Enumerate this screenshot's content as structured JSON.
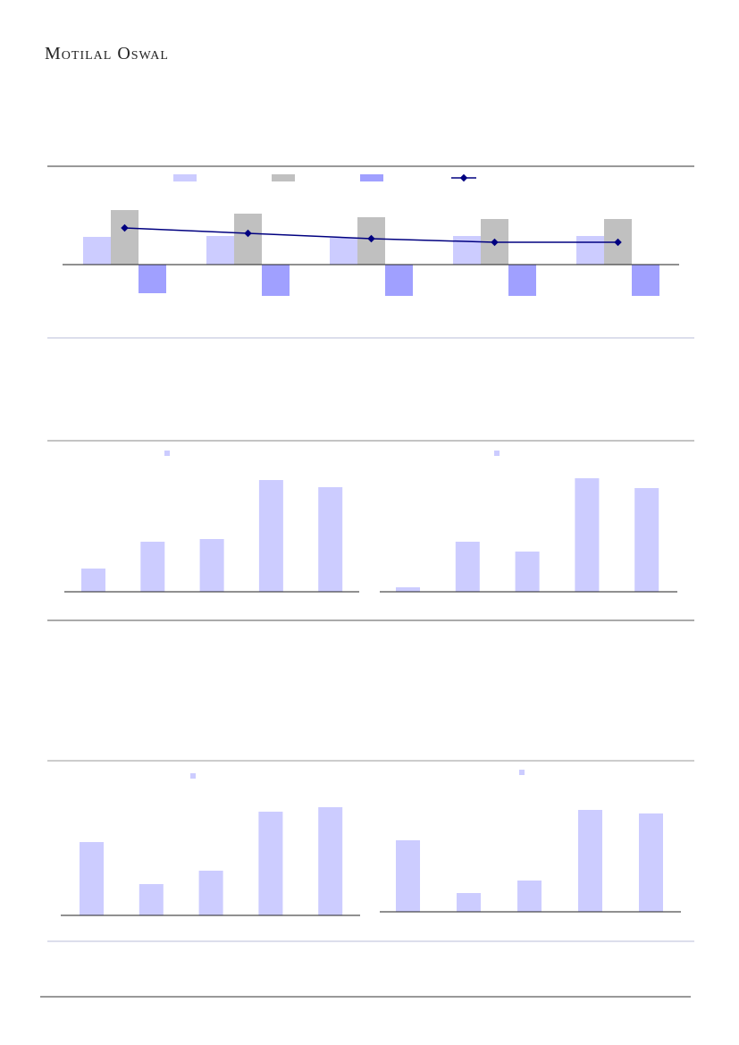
{
  "header": {
    "brand": "Motilal Oswal"
  },
  "charts": [
    {
      "type": "bar-line",
      "series": [
        {
          "type": "bar",
          "color": "#ccccff",
          "values": [
            31,
            32,
            30,
            32,
            32
          ]
        },
        {
          "type": "bar",
          "color": "#c0c0c0",
          "values": [
            61,
            57,
            53,
            51,
            51
          ]
        },
        {
          "type": "bar",
          "color": "#a0a0ff",
          "values": [
            -32,
            -35,
            -35,
            -35,
            -35
          ]
        },
        {
          "type": "line",
          "color": "#000080",
          "values": [
            41,
            35,
            29,
            25,
            25
          ]
        }
      ]
    },
    {
      "type": "bar",
      "series": [
        {
          "color": "#ccccff",
          "values": [
            26,
            56,
            59,
            125,
            117
          ]
        }
      ]
    },
    {
      "type": "bar",
      "series": [
        {
          "color": "#ccccff",
          "values": [
            5,
            56,
            45,
            127,
            116
          ]
        }
      ]
    },
    {
      "type": "bar",
      "series": [
        {
          "color": "#ccccff",
          "values": [
            82,
            35,
            50,
            116,
            121
          ]
        }
      ]
    },
    {
      "type": "bar",
      "series": [
        {
          "color": "#ccccff",
          "values": [
            80,
            21,
            35,
            114,
            110
          ]
        }
      ]
    }
  ]
}
